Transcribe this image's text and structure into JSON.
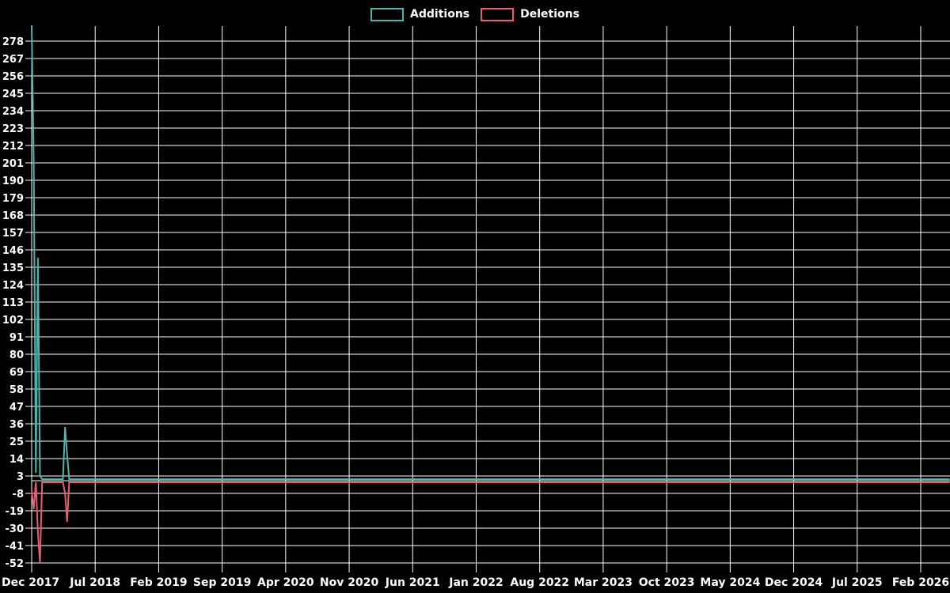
{
  "legend": {
    "additions_label": "Additions",
    "deletions_label": "Deletions"
  },
  "colors": {
    "background": "#000000",
    "grid": "#ffffff",
    "text": "#ffffff",
    "additions": "#4cb5ab",
    "deletions": "#ec5b72"
  },
  "chart_data": {
    "type": "line",
    "title": "",
    "xlabel": "",
    "ylabel": "",
    "grid": "on",
    "legend_position": "top-center",
    "x_tick_labels": [
      "Dec 2017",
      "Jul 2018",
      "Feb 2019",
      "Sep 2019",
      "Apr 2020",
      "Nov 2020",
      "Jun 2021",
      "Jan 2022",
      "Aug 2022",
      "Mar 2023",
      "Oct 2023",
      "May 2024",
      "Dec 2024",
      "Jul 2025",
      "Feb 2026"
    ],
    "x_tick_interval_months": 7,
    "y_tick_labels": [
      278,
      267,
      256,
      245,
      234,
      223,
      212,
      201,
      190,
      179,
      168,
      157,
      146,
      135,
      124,
      113,
      102,
      91,
      80,
      69,
      58,
      47,
      36,
      25,
      14,
      3,
      -8,
      -19,
      -30,
      -41,
      -52
    ],
    "ylim": [
      -57,
      287.5
    ],
    "x_unit": "weeks from Dec 2017",
    "series": [
      {
        "name": "Additions",
        "color": "#4cb5ab",
        "points": [
          [
            0,
            288
          ],
          [
            1,
            201
          ],
          [
            2,
            5
          ],
          [
            3,
            141
          ],
          [
            4,
            3
          ],
          [
            5,
            1
          ],
          [
            15,
            1
          ],
          [
            16,
            34
          ],
          [
            17,
            16
          ],
          [
            18,
            1
          ],
          [
            440,
            1
          ]
        ]
      },
      {
        "name": "Deletions",
        "color": "#ec5b72",
        "points": [
          [
            0,
            -6
          ],
          [
            1,
            -18
          ],
          [
            2,
            -1
          ],
          [
            3,
            -33
          ],
          [
            4,
            -52
          ],
          [
            5,
            -1
          ],
          [
            15,
            -1
          ],
          [
            16,
            -8
          ],
          [
            17,
            -26
          ],
          [
            18,
            -1
          ],
          [
            440,
            -1
          ]
        ]
      }
    ]
  }
}
